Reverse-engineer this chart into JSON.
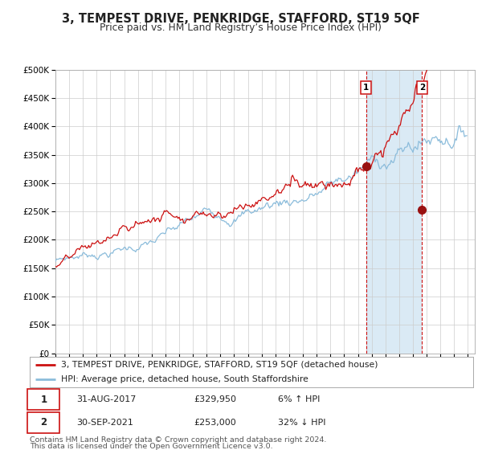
{
  "title": "3, TEMPEST DRIVE, PENKRIDGE, STAFFORD, ST19 5QF",
  "subtitle": "Price paid vs. HM Land Registry’s House Price Index (HPI)",
  "legend_line1": "3, TEMPEST DRIVE, PENKRIDGE, STAFFORD, ST19 5QF (detached house)",
  "legend_line2": "HPI: Average price, detached house, South Staffordshire",
  "ann1_date_str": "31-AUG-2017",
  "ann1_price_str": "£329,950",
  "ann1_pct_str": "6% ↑ HPI",
  "ann2_date_str": "30-SEP-2021",
  "ann2_price_str": "£253,000",
  "ann2_pct_str": "32% ↓ HPI",
  "ann1_price": 329950,
  "ann2_price": 253000,
  "hpi_color": "#8bbcdb",
  "price_color": "#cc1111",
  "dot_color": "#991111",
  "vline_color": "#cc1111",
  "shade_color": "#daeaf5",
  "bg_color": "#ffffff",
  "grid_color": "#cccccc",
  "box_edge_color": "#cc1111",
  "footnote_line1": "Contains HM Land Registry data © Crown copyright and database right 2024.",
  "footnote_line2": "This data is licensed under the Open Government Licence v3.0.",
  "ylim_min": 0,
  "ylim_max": 500000,
  "xmin": 1995.0,
  "xmax": 2025.5
}
